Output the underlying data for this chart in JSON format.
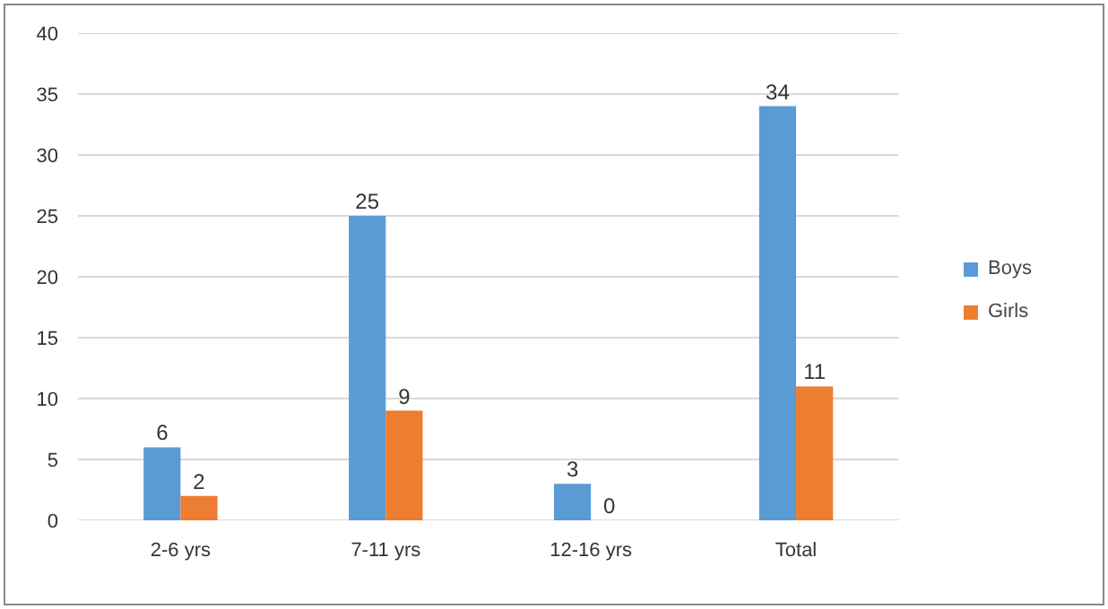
{
  "chart_data": {
    "type": "bar",
    "categories": [
      "2-6 yrs",
      "7-11 yrs",
      "12-16 yrs",
      "Total"
    ],
    "series": [
      {
        "name": "Boys",
        "color": "#5b9bd5",
        "values": [
          6,
          25,
          3,
          34
        ]
      },
      {
        "name": "Girls",
        "color": "#ed7d31",
        "values": [
          2,
          9,
          0,
          11
        ]
      }
    ],
    "ylim": [
      0,
      40
    ],
    "yticks": [
      0,
      5,
      10,
      15,
      20,
      25,
      30,
      35,
      40
    ],
    "grid": "y",
    "legend": "right",
    "data_labels": true
  }
}
